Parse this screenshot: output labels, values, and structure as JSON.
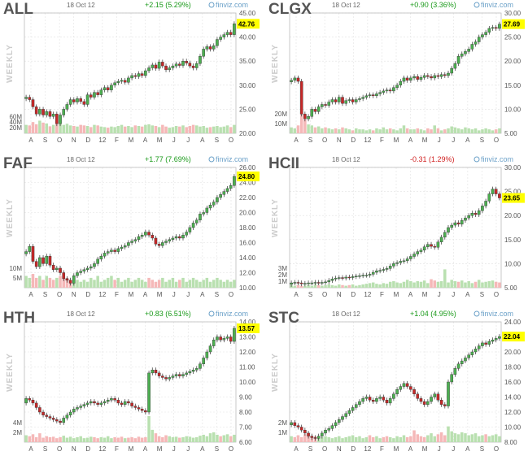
{
  "colors": {
    "up": "#4caf50",
    "down": "#c62828",
    "vol_up": "#b9e0b0",
    "vol_down": "#f5b8b8",
    "grid": "#e2e2e2",
    "highlight": "#ffff00",
    "pos": "#1a9a1a",
    "neg": "#d02020"
  },
  "brand": "finviz.com",
  "period": "WEEKLY",
  "chart_data": [
    {
      "type": "candlestick",
      "ticker": "ALL",
      "date": "18 Oct 12",
      "change": "+2.15 (5.29%)",
      "change_sign": "pos",
      "last": 42.76,
      "last_label": "42.76",
      "ylim": [
        20,
        45
      ],
      "yticks": [
        "45.00",
        "40.00",
        "35.00",
        "30.00",
        "25.00",
        "20.00"
      ],
      "ytick_values": [
        45,
        40,
        35,
        30,
        25,
        20
      ],
      "xlabels": [
        "A",
        "S",
        "O",
        "N",
        "D",
        "12",
        "F",
        "M",
        "A",
        "M",
        "J",
        "J",
        "A",
        "S",
        "O"
      ],
      "vol_labels": [
        "60M",
        "40M",
        "20M"
      ],
      "vol_label_values": [
        60,
        40,
        20
      ],
      "vol_max": 140,
      "closes": [
        27.5,
        27.0,
        25.5,
        24.0,
        25.0,
        23.8,
        24.5,
        23.5,
        24.0,
        22.0,
        23.8,
        25.0,
        26.0,
        27.0,
        26.5,
        27.2,
        26.6,
        26.0,
        28.0,
        27.5,
        28.5,
        28.0,
        29.0,
        29.5,
        29.0,
        30.0,
        30.5,
        30.8,
        31.0,
        30.6,
        31.5,
        32.0,
        31.8,
        32.4,
        32.0,
        33.0,
        33.6,
        34.2,
        33.5,
        34.8,
        34.0,
        33.2,
        33.6,
        34.0,
        34.4,
        34.1,
        35.0,
        34.6,
        34.0,
        33.6,
        34.5,
        36.0,
        37.5,
        38.0,
        37.5,
        38.2,
        39.5,
        40.0,
        40.5,
        41.0,
        40.5,
        42.76
      ],
      "volumes": [
        30,
        28,
        40,
        32,
        45,
        38,
        35,
        25,
        30,
        42,
        36,
        30,
        34,
        28,
        26,
        24,
        30,
        28,
        26,
        22,
        30,
        28,
        24,
        22,
        20,
        24,
        22,
        26,
        30,
        24,
        26,
        22,
        28,
        26,
        24,
        30,
        32,
        28,
        26,
        22,
        30,
        24,
        20,
        22,
        26,
        24,
        28,
        22,
        26,
        30,
        28,
        24,
        26,
        20,
        22,
        24,
        26,
        22,
        24,
        28,
        22,
        30
      ]
    },
    {
      "type": "candlestick",
      "ticker": "CLGX",
      "date": "18 Oct 12",
      "change": "+0.90 (3.36%)",
      "change_sign": "pos",
      "last": 27.69,
      "last_label": "27.69",
      "ylim": [
        5,
        30
      ],
      "yticks": [
        "30.00",
        "25.00",
        "20.00",
        "15.00",
        "10.00",
        "5.00"
      ],
      "ytick_values": [
        30,
        25,
        20,
        15,
        10,
        5
      ],
      "xlabels": [
        "A",
        "S",
        "O",
        "N",
        "D",
        "12",
        "F",
        "M",
        "A",
        "M",
        "J",
        "J",
        "A",
        "S",
        "O"
      ],
      "vol_labels": [
        "20M",
        "10M"
      ],
      "vol_label_values": [
        20,
        10
      ],
      "vol_max": 40,
      "closes": [
        16.0,
        16.5,
        15.8,
        9.0,
        8.0,
        8.5,
        10.0,
        9.5,
        10.5,
        11.0,
        10.8,
        11.5,
        12.0,
        11.5,
        12.5,
        11.2,
        11.8,
        12.0,
        11.5,
        12.0,
        12.2,
        12.5,
        12.8,
        13.0,
        12.8,
        13.2,
        13.5,
        13.8,
        14.0,
        13.8,
        14.5,
        15.0,
        15.8,
        16.5,
        16.0,
        16.5,
        16.8,
        16.2,
        16.6,
        17.0,
        16.8,
        16.5,
        17.0,
        16.8,
        17.2,
        17.0,
        17.5,
        18.5,
        19.5,
        21.0,
        21.5,
        22.0,
        22.5,
        23.5,
        24.0,
        25.0,
        25.5,
        26.0,
        26.8,
        27.0,
        26.8,
        27.69
      ],
      "volumes": [
        6,
        5,
        8,
        22,
        14,
        9,
        8,
        6,
        7,
        5,
        6,
        5,
        4,
        5,
        4,
        6,
        5,
        4,
        3,
        5,
        4,
        4,
        3,
        4,
        3,
        5,
        4,
        6,
        4,
        5,
        4,
        3,
        5,
        8,
        5,
        4,
        4,
        5,
        4,
        3,
        5,
        4,
        8,
        5,
        3,
        4,
        5,
        7,
        6,
        5,
        4,
        6,
        5,
        4,
        5,
        3,
        4,
        5,
        4,
        3,
        4,
        5
      ]
    },
    {
      "type": "candlestick",
      "ticker": "FAF",
      "date": "18 Oct 12",
      "change": "+1.77 (7.69%)",
      "change_sign": "pos",
      "last": 24.8,
      "last_label": "24.80",
      "ylim": [
        10,
        26
      ],
      "yticks": [
        "26.00",
        "24.00",
        "22.00",
        "20.00",
        "18.00",
        "16.00",
        "14.00",
        "12.00",
        "10.00"
      ],
      "ytick_values": [
        26,
        24,
        22,
        20,
        18,
        16,
        14,
        12,
        10
      ],
      "xlabels": [
        "A",
        "S",
        "O",
        "N",
        "D",
        "12",
        "F",
        "M",
        "A",
        "M",
        "J",
        "J",
        "A",
        "S",
        "O"
      ],
      "vol_labels": [
        "10M",
        "5M"
      ],
      "vol_label_values": [
        10,
        5
      ],
      "vol_max": 20,
      "closes": [
        14.8,
        15.5,
        13.5,
        12.8,
        14.0,
        13.2,
        14.2,
        13.0,
        12.4,
        12.6,
        12.0,
        11.2,
        11.0,
        10.6,
        11.6,
        12.0,
        12.2,
        12.4,
        12.6,
        12.8,
        13.2,
        13.8,
        14.2,
        14.6,
        14.8,
        15.0,
        14.8,
        15.2,
        15.4,
        15.6,
        16.0,
        16.2,
        16.4,
        16.8,
        17.0,
        17.4,
        17.0,
        16.6,
        15.8,
        15.6,
        16.0,
        16.2,
        16.4,
        16.6,
        16.8,
        16.6,
        17.0,
        17.4,
        18.0,
        18.6,
        19.0,
        19.8,
        20.0,
        20.6,
        21.0,
        21.4,
        22.0,
        22.4,
        22.8,
        23.2,
        23.6,
        24.8
      ],
      "volumes": [
        6,
        5,
        7,
        5,
        6,
        4,
        6,
        5,
        4,
        5,
        6,
        7,
        5,
        4,
        3,
        4,
        3,
        4,
        3,
        5,
        4,
        6,
        3,
        4,
        5,
        6,
        4,
        5,
        3,
        4,
        5,
        3,
        4,
        5,
        4,
        3,
        5,
        4,
        3,
        4,
        5,
        3,
        4,
        5,
        3,
        4,
        5,
        3,
        4,
        5,
        4,
        3,
        4,
        5,
        3,
        4,
        5,
        4,
        3,
        4,
        3,
        4
      ]
    },
    {
      "type": "candlestick",
      "ticker": "HCII",
      "date": "18 Oct 12",
      "change": "-0.31 (1.29%)",
      "change_sign": "neg",
      "last": 23.65,
      "last_label": "23.65",
      "ylim": [
        5,
        30
      ],
      "yticks": [
        "30.00",
        "25.00",
        "20.00",
        "15.00",
        "10.00",
        "5.00"
      ],
      "ytick_values": [
        30,
        25,
        20,
        15,
        10,
        5
      ],
      "xlabels": [
        "A",
        "S",
        "O",
        "N",
        "D",
        "12",
        "F",
        "M",
        "A",
        "M",
        "J",
        "J",
        "A",
        "S",
        "O"
      ],
      "vol_labels": [
        "3M",
        "2M",
        "1M"
      ],
      "vol_label_values": [
        3,
        2,
        1
      ],
      "vol_max": 6,
      "closes": [
        6.0,
        6.1,
        6.0,
        5.8,
        5.9,
        6.0,
        6.0,
        6.1,
        6.0,
        6.1,
        6.2,
        6.5,
        6.8,
        7.0,
        7.1,
        7.0,
        7.2,
        7.1,
        7.3,
        7.4,
        7.5,
        7.6,
        7.6,
        7.8,
        8.2,
        8.5,
        8.6,
        8.8,
        9.0,
        9.5,
        10.0,
        10.2,
        10.5,
        10.6,
        11.0,
        11.5,
        12.0,
        12.5,
        12.8,
        13.5,
        14.0,
        13.6,
        13.4,
        14.5,
        15.5,
        16.5,
        17.5,
        18.0,
        18.5,
        18.2,
        19.0,
        19.5,
        20.0,
        20.5,
        20.2,
        21.0,
        22.0,
        23.0,
        24.5,
        25.5,
        24.5,
        23.65
      ],
      "volumes": [
        0.4,
        0.3,
        0.4,
        0.3,
        0.3,
        0.4,
        0.3,
        0.5,
        0.4,
        0.3,
        0.4,
        0.5,
        0.4,
        0.3,
        0.5,
        0.4,
        0.3,
        0.4,
        0.5,
        0.3,
        0.4,
        0.5,
        0.6,
        0.7,
        0.8,
        0.6,
        0.5,
        0.7,
        0.6,
        0.9,
        1.0,
        0.8,
        0.7,
        0.9,
        1.2,
        1.0,
        0.8,
        1.0,
        0.9,
        1.1,
        0.7,
        1.3,
        1.1,
        0.9,
        1.0,
        2.8,
        0.8,
        1.2,
        1.0,
        0.9,
        1.1,
        0.8,
        1.0,
        0.7,
        0.9,
        1.2,
        0.8,
        0.9,
        1.0,
        1.1,
        0.9,
        0.8
      ]
    },
    {
      "type": "candlestick",
      "ticker": "HTH",
      "date": "18 Oct 12",
      "change": "+0.83 (6.51%)",
      "change_sign": "pos",
      "last": 13.57,
      "last_label": "13.57",
      "ylim": [
        6,
        14
      ],
      "yticks": [
        "14.00",
        "13.00",
        "12.00",
        "11.00",
        "10.00",
        "9.00",
        "8.00",
        "7.00",
        "6.00"
      ],
      "ytick_values": [
        14,
        13,
        12,
        11,
        10,
        9,
        8,
        7,
        6
      ],
      "xlabels": [
        "A",
        "S",
        "O",
        "N",
        "D",
        "12",
        "F",
        "M",
        "A",
        "M",
        "J",
        "J",
        "A",
        "S",
        "O"
      ],
      "vol_labels": [
        "4M",
        "2M"
      ],
      "vol_label_values": [
        4,
        2
      ],
      "vol_max": 8,
      "closes": [
        8.9,
        8.8,
        8.6,
        8.3,
        8.0,
        7.8,
        7.7,
        7.6,
        7.5,
        7.4,
        7.3,
        7.6,
        7.8,
        8.0,
        8.2,
        8.3,
        8.4,
        8.5,
        8.6,
        8.7,
        8.6,
        8.5,
        8.6,
        8.7,
        8.8,
        8.9,
        8.8,
        8.6,
        8.5,
        8.7,
        8.6,
        8.4,
        8.3,
        8.2,
        8.1,
        8.0,
        10.6,
        10.8,
        10.6,
        10.4,
        10.3,
        10.2,
        10.3,
        10.4,
        10.5,
        10.4,
        10.5,
        10.6,
        10.7,
        10.8,
        10.9,
        11.2,
        11.6,
        12.0,
        12.4,
        12.8,
        13.0,
        12.8,
        12.9,
        13.0,
        12.7,
        13.57
      ],
      "volumes": [
        1.4,
        1.2,
        1.6,
        1.0,
        1.8,
        0.9,
        1.2,
        1.0,
        1.1,
        0.8,
        1.0,
        1.3,
        0.9,
        1.1,
        0.8,
        1.0,
        1.2,
        0.8,
        0.9,
        1.1,
        1.0,
        0.8,
        1.0,
        0.9,
        1.2,
        0.8,
        1.0,
        0.9,
        1.1,
        0.8,
        0.9,
        1.0,
        0.8,
        1.1,
        0.9,
        1.0,
        5.5,
        2.5,
        1.8,
        1.2,
        1.0,
        1.4,
        1.2,
        1.0,
        1.1,
        0.9,
        1.0,
        1.2,
        1.1,
        0.9,
        1.0,
        1.3,
        1.5,
        1.2,
        1.8,
        2.0,
        1.5,
        1.2,
        1.4,
        1.6,
        1.2,
        1.5
      ]
    },
    {
      "type": "candlestick",
      "ticker": "STC",
      "date": "18 Oct 12",
      "change": "+1.04 (4.95%)",
      "change_sign": "pos",
      "last": 22.04,
      "last_label": "22.04",
      "ylim": [
        8,
        24
      ],
      "yticks": [
        "24.00",
        "22.00",
        "20.00",
        "18.00",
        "16.00",
        "14.00",
        "12.00",
        "10.00",
        "8.00"
      ],
      "ytick_values": [
        24,
        22,
        20,
        18,
        16,
        14,
        12,
        10,
        8
      ],
      "xlabels": [
        "A",
        "S",
        "O",
        "N",
        "D",
        "12",
        "F",
        "M",
        "A",
        "M",
        "J",
        "J",
        "A",
        "S",
        "O"
      ],
      "vol_labels": [
        "2M",
        "1M"
      ],
      "vol_label_values": [
        2,
        1
      ],
      "vol_max": 4,
      "closes": [
        10.6,
        10.2,
        10.0,
        9.6,
        9.2,
        8.8,
        8.6,
        8.5,
        8.8,
        9.2,
        9.6,
        9.8,
        10.2,
        10.6,
        11.0,
        11.4,
        11.8,
        12.2,
        12.6,
        13.0,
        13.4,
        13.8,
        14.0,
        13.6,
        13.4,
        13.8,
        14.0,
        13.6,
        13.2,
        13.8,
        14.4,
        15.0,
        15.4,
        15.8,
        15.4,
        15.0,
        14.4,
        13.8,
        13.4,
        13.0,
        13.4,
        14.0,
        14.4,
        13.6,
        13.0,
        12.8,
        16.0,
        17.0,
        17.8,
        18.4,
        18.8,
        19.2,
        19.6,
        20.0,
        20.4,
        20.8,
        21.2,
        21.0,
        21.4,
        21.6,
        21.8,
        22.04
      ],
      "volumes": [
        0.6,
        0.5,
        0.7,
        0.5,
        0.8,
        0.6,
        0.5,
        0.6,
        0.4,
        0.5,
        0.6,
        0.5,
        0.4,
        0.5,
        0.6,
        0.4,
        0.5,
        0.6,
        0.7,
        0.5,
        0.6,
        0.4,
        0.5,
        0.7,
        0.5,
        0.6,
        0.4,
        0.5,
        0.6,
        0.5,
        0.4,
        0.6,
        0.5,
        0.7,
        0.5,
        0.6,
        1.2,
        0.8,
        0.6,
        0.5,
        0.7,
        0.9,
        0.6,
        0.8,
        1.0,
        0.7,
        1.6,
        1.1,
        0.9,
        0.8,
        1.0,
        0.9,
        0.7,
        0.8,
        0.9,
        0.6,
        0.7,
        0.8,
        0.6,
        0.7,
        0.8,
        0.6
      ]
    }
  ]
}
